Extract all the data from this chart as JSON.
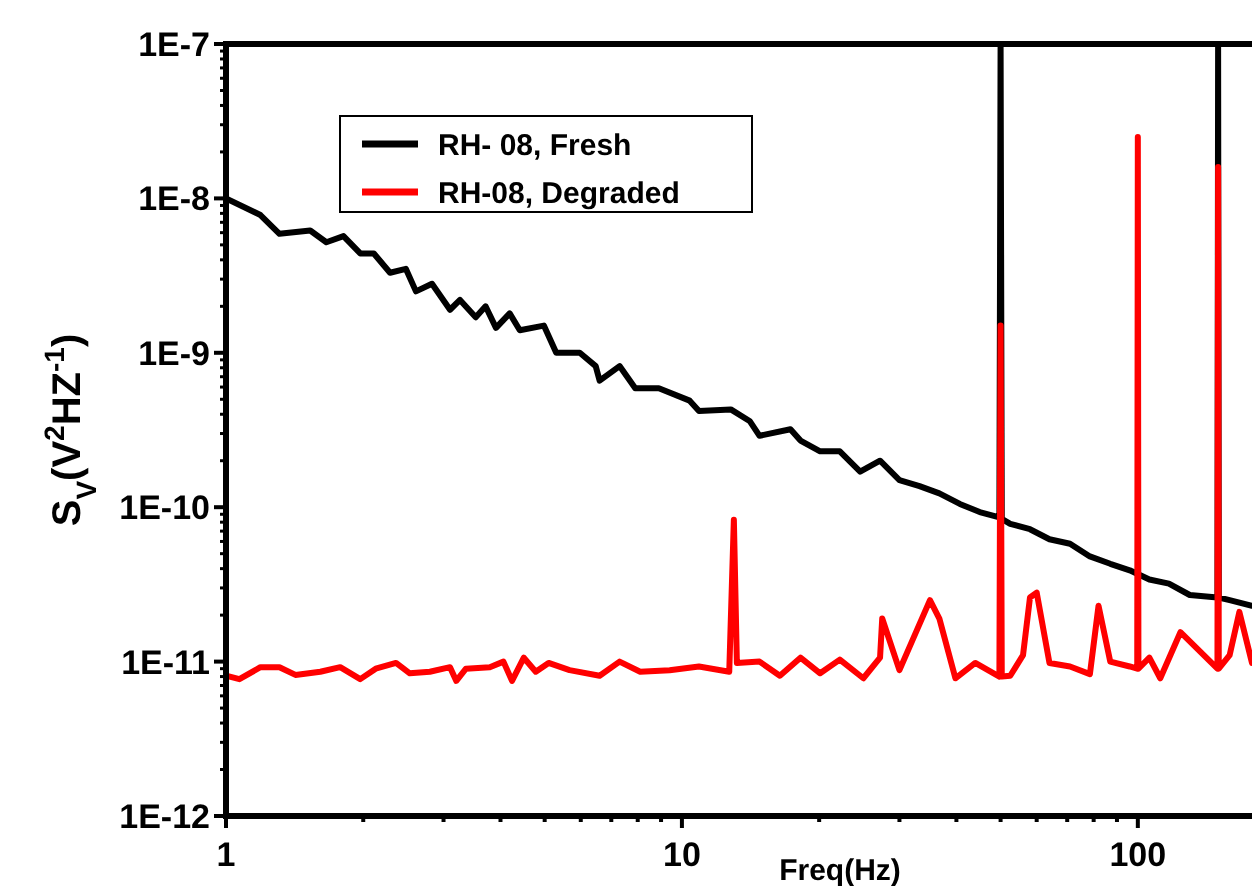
{
  "chart_data": {
    "type": "line",
    "xlabel": "Freq(Hz)",
    "ylabel": "S$_{V}$(V$^{2}$HZ$^{-1}$)",
    "log": "xy",
    "grid": false,
    "legend": "top left",
    "line_style": "solid",
    "xlim": [
      1,
      178
    ],
    "ylim": [
      1e-12,
      1e-07
    ],
    "xticks": [
      1,
      {
        "value": 2,
        "label": null
      },
      {
        "value": 3,
        "label": null
      },
      {
        "value": 4,
        "label": null
      },
      {
        "value": 5,
        "label": null
      },
      {
        "value": 6,
        "label": null
      },
      {
        "value": 7,
        "label": null
      },
      {
        "value": 8,
        "label": null
      },
      {
        "value": 9,
        "label": null
      },
      10,
      {
        "value": 20,
        "label": null
      },
      {
        "value": 30,
        "label": null
      },
      {
        "value": 40,
        "label": null
      },
      {
        "value": 50,
        "label": null
      },
      {
        "value": 60,
        "label": null
      },
      {
        "value": 70,
        "label": null
      },
      {
        "value": 80,
        "label": null
      },
      {
        "value": 90,
        "label": null
      },
      100
    ],
    "yticks": [
      {
        "value": 1e-12,
        "label": "1E-12"
      },
      {
        "value": 1e-11,
        "label": "1E-11"
      },
      {
        "value": 1e-10,
        "label": "1E-10"
      },
      {
        "value": 1e-09,
        "label": "1E-9"
      },
      {
        "value": 1e-08,
        "label": "1E-8"
      },
      {
        "value": 1e-07,
        "label": "1E-7"
      }
    ],
    "series": [
      {
        "name": "RH- 08, Fresh",
        "color": "#000000",
        "x": [
          1,
          1.19,
          1.31,
          1.53,
          1.66,
          1.81,
          1.97,
          2.11,
          2.29,
          2.48,
          2.61,
          2.83,
          3.1,
          3.26,
          3.53,
          3.71,
          3.91,
          4.19,
          4.41,
          4.98,
          5.3,
          5.97,
          6.47,
          6.6,
          7.3,
          7.9,
          8.9,
          10.4,
          10.9,
          12.8,
          14.1,
          14.8,
          17.3,
          18.2,
          20.1,
          22.2,
          24.6,
          27.2,
          30,
          33.2,
          36.7,
          40.7,
          45,
          49.7,
          50,
          50.3,
          52.5,
          58,
          64,
          71,
          78.5,
          87,
          96,
          106,
          117,
          130,
          149.5,
          150,
          150.5,
          159,
          178
        ],
        "values": [
          1e-08,
          7.8e-09,
          5.9e-09,
          6.2e-09,
          5.2e-09,
          5.7e-09,
          4.4e-09,
          4.4e-09,
          3.3e-09,
          3.5e-09,
          2.5e-09,
          2.8e-09,
          1.9e-09,
          2.2e-09,
          1.7e-09,
          2e-09,
          1.45e-09,
          1.8e-09,
          1.4e-09,
          1.5e-09,
          1e-09,
          1e-09,
          8.2e-10,
          6.6e-10,
          8.2e-10,
          5.9e-10,
          5.9e-10,
          4.9e-10,
          4.2e-10,
          4.3e-10,
          3.6e-10,
          2.9e-10,
          3.2e-10,
          2.7e-10,
          2.3e-10,
          2.3e-10,
          1.7e-10,
          2e-10,
          1.5e-10,
          1.37e-10,
          1.23e-10,
          1.05e-10,
          9.3e-11,
          8.6e-11,
          1e-07,
          8.4e-11,
          7.8e-11,
          7.2e-11,
          6.2e-11,
          5.8e-11,
          4.8e-11,
          4.3e-11,
          3.9e-11,
          3.4e-11,
          3.2e-11,
          2.7e-11,
          2.6e-11,
          1e-07,
          2.6e-11,
          2.5e-11,
          2.3e-11
        ]
      },
      {
        "name": "RH-08, Degraded",
        "color": "#ff0000",
        "x": [
          1,
          1.07,
          1.19,
          1.31,
          1.42,
          1.61,
          1.78,
          1.97,
          2.13,
          2.36,
          2.53,
          2.8,
          3.1,
          3.2,
          3.36,
          3.79,
          4.06,
          4.24,
          4.5,
          4.78,
          5.1,
          5.67,
          6.6,
          7.3,
          8.1,
          9.4,
          10.9,
          12.7,
          13,
          13.2,
          14.8,
          16.4,
          18.2,
          20.1,
          22.2,
          25,
          27.2,
          27.5,
          30,
          35,
          36.7,
          39.8,
          44,
          49.7,
          50,
          50.3,
          52.5,
          56,
          58,
          60,
          64,
          71,
          78.5,
          82,
          87,
          96,
          99.7,
          100,
          100.3,
          106,
          112,
          124,
          149.5,
          150,
          150.5,
          159,
          167,
          178
        ],
        "values": [
          8.1e-12,
          7.7e-12,
          9.2e-12,
          9.2e-12,
          8.2e-12,
          8.6e-12,
          9.2e-12,
          7.7e-12,
          9e-12,
          9.8e-12,
          8.4e-12,
          8.6e-12,
          9.2e-12,
          7.5e-12,
          9e-12,
          9.2e-12,
          1e-11,
          7.5e-12,
          1.06e-11,
          8.6e-12,
          9.8e-12,
          8.8e-12,
          8.1e-12,
          1e-11,
          8.6e-12,
          8.8e-12,
          9.3e-12,
          8.6e-12,
          8.3e-11,
          9.8e-12,
          1e-11,
          8.1e-12,
          1.06e-11,
          8.4e-12,
          1.03e-11,
          7.8e-12,
          1.06e-11,
          1.9e-11,
          8.8e-12,
          2.5e-11,
          1.9e-11,
          7.8e-12,
          9.8e-12,
          8e-12,
          1.5e-09,
          8e-12,
          8.1e-12,
          1.1e-11,
          2.6e-11,
          2.8e-11,
          9.8e-12,
          9.3e-12,
          8.3e-12,
          2.3e-11,
          1e-11,
          9.3e-12,
          9e-12,
          2.5e-08,
          9e-12,
          1.06e-11,
          7.8e-12,
          1.55e-11,
          9e-12,
          1.6e-08,
          9e-12,
          1.1e-11,
          2.1e-11,
          9.8e-12
        ]
      }
    ]
  }
}
